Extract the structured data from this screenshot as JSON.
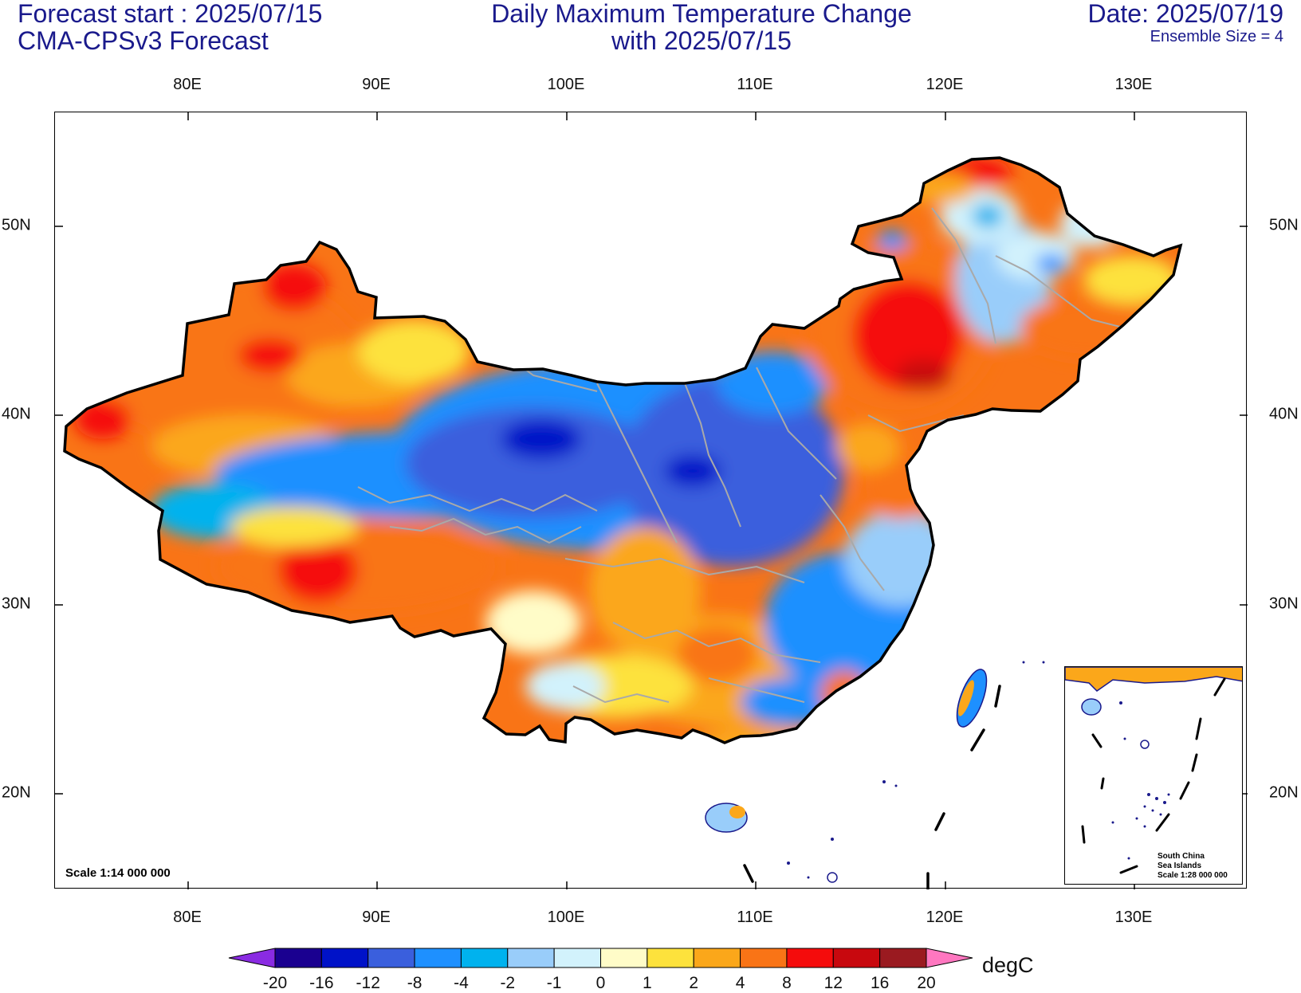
{
  "header": {
    "forecast_start": "Forecast start : 2025/07/15",
    "model": "CMA-CPSv3 Forecast",
    "title_line1": "Daily Maximum Temperature Change",
    "title_line2": "with 2025/07/15",
    "date": "Date: 2025/07/19",
    "ensemble": "Ensemble Size = 4"
  },
  "axes": {
    "lon_labels": [
      "80E",
      "90E",
      "100E",
      "110E",
      "120E",
      "130E"
    ],
    "lat_labels": [
      "50N",
      "40N",
      "30N",
      "20N"
    ]
  },
  "map": {
    "scale_text": "Scale 1:14 000 000",
    "inset_caption": [
      "South China",
      "Sea Islands",
      "Scale 1:28 000 000"
    ]
  },
  "colorbar": {
    "unit": "degC",
    "labels": [
      "-20",
      "-16",
      "-12",
      "-8",
      "-4",
      "-2",
      "-1",
      "0",
      "1",
      "2",
      "4",
      "8",
      "12",
      "16",
      "20"
    ],
    "colors": [
      "#1a0090",
      "#0012c8",
      "#3a5fdd",
      "#1e90ff",
      "#00b2ee",
      "#99cdfa",
      "#d2f2fc",
      "#fffcc8",
      "#fde23c",
      "#fba71a",
      "#f97416",
      "#f50c0c",
      "#c8080e",
      "#9a1a20"
    ],
    "low_extend_color": "#8a2be2",
    "high_extend_color": "#ff77c0"
  },
  "colors": {
    "title_text": "#1a1a8c",
    "border": "#000000",
    "province_lines": "#a9a9a9"
  }
}
